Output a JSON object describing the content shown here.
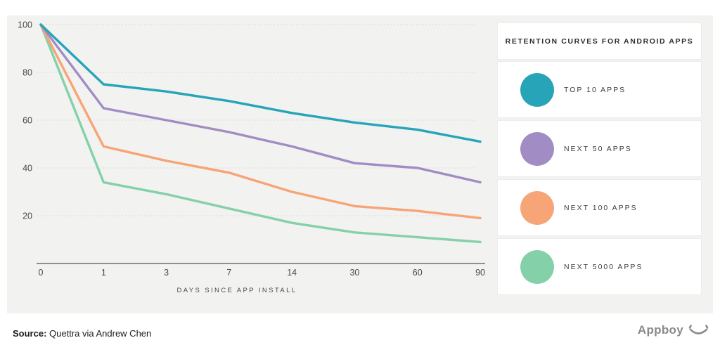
{
  "page": {
    "background": "#ffffff",
    "panel_bg": "#f2f2f1",
    "gridline_color": "#d8d8d6",
    "axis_color": "#8f8f8f",
    "tick_text_color": "#4a4a4a"
  },
  "chart_data": {
    "type": "line",
    "categories": [
      "0",
      "1",
      "3",
      "7",
      "14",
      "30",
      "60",
      "90"
    ],
    "series": [
      {
        "name": "TOP 10 APPS",
        "color": "#28a4b8",
        "values": [
          100,
          75,
          72,
          68,
          63,
          59,
          56,
          51
        ]
      },
      {
        "name": "NEXT 50 APPS",
        "color": "#a18cc4",
        "values": [
          100,
          65,
          60,
          55,
          49,
          42,
          40,
          34
        ]
      },
      {
        "name": "NEXT 100 APPS",
        "color": "#f7a476",
        "values": [
          100,
          49,
          43,
          38,
          30,
          24,
          22,
          19
        ]
      },
      {
        "name": "NEXT 5000 APPS",
        "color": "#84d1a9",
        "values": [
          100,
          34,
          29,
          23,
          17,
          13,
          11,
          9
        ]
      }
    ],
    "title": "RETENTION CURVES FOR ANDROID APPS",
    "xlabel": "DAYS SINCE APP INSTALL",
    "ylabel": "",
    "ylim": [
      0,
      100
    ],
    "yticks": [
      20,
      40,
      60,
      80,
      100
    ],
    "grid": true,
    "legend_position": "right"
  },
  "legend": {
    "title": "RETENTION CURVES FOR ANDROID APPS"
  },
  "footer": {
    "source_label": "Source:",
    "source_text": " Quettra via Andrew Chen",
    "brand": "Appboy",
    "brand_icon": "smiley-face"
  }
}
